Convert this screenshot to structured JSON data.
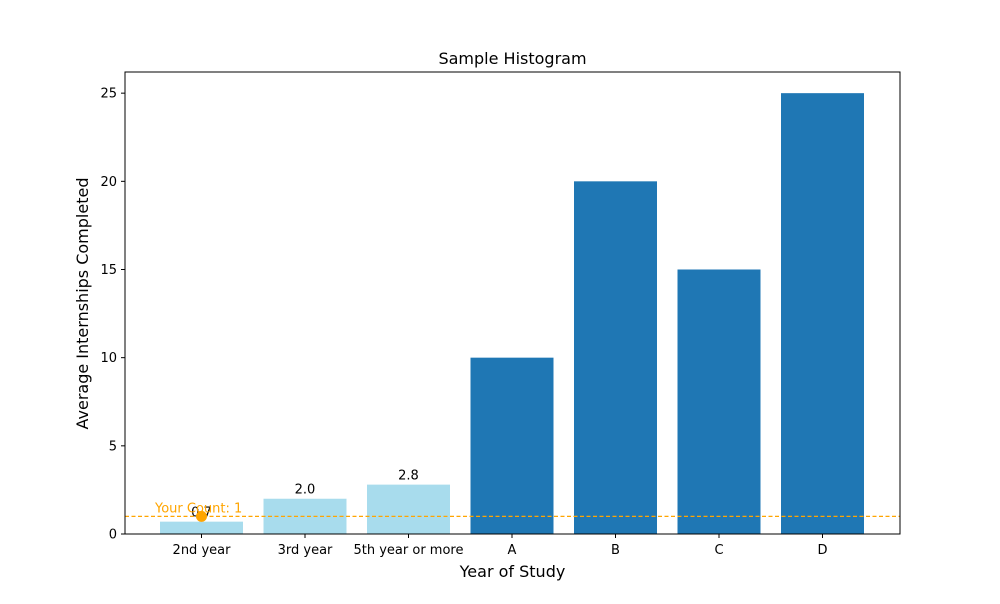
{
  "chart_data": {
    "type": "bar",
    "title": "Sample Histogram",
    "xlabel": "Year of Study",
    "ylabel": "Average Internships Completed",
    "categories": [
      "2nd year",
      "3rd year",
      "5th year or more",
      "A",
      "B",
      "C",
      "D"
    ],
    "values": [
      0.7,
      2.0,
      2.8,
      10,
      20,
      15,
      25
    ],
    "data_labels": [
      "0.7",
      "2.0",
      "2.8",
      null,
      null,
      null,
      null
    ],
    "bar_colors": [
      "#a8dced",
      "#a8dced",
      "#a8dced",
      "#1f77b4",
      "#1f77b4",
      "#1f77b4",
      "#1f77b4"
    ],
    "ylim": [
      0,
      26.2
    ],
    "yticks": [
      0,
      5,
      10,
      15,
      20,
      25
    ],
    "grid": false,
    "reference_line": {
      "value": 1,
      "label": "Your Count: 1",
      "color": "#ffa500",
      "style": "dashed"
    },
    "highlight_point": {
      "category": "2nd year",
      "value": 1,
      "color": "#ffa500"
    }
  }
}
